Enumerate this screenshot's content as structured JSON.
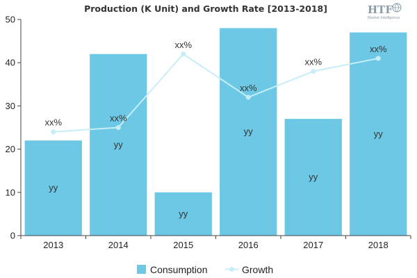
{
  "logo": {
    "text": "HTF",
    "subtitle": "Market Intelligence"
  },
  "chart_data": {
    "type": "bar",
    "title": "Production (K Unit) and Growth Rate [2013-2018]",
    "categories": [
      "2013",
      "2014",
      "2015",
      "2016",
      "2017",
      "2018"
    ],
    "ylim": [
      0,
      50
    ],
    "yticks": [
      0,
      10,
      20,
      30,
      40,
      50
    ],
    "grid": false,
    "legend_position": "bottom",
    "series": [
      {
        "name": "Consumption",
        "type": "bar",
        "color": "#6cc8e4",
        "values": [
          22,
          42,
          10,
          48,
          27,
          47
        ],
        "labels": [
          "yy",
          "yy",
          "yy",
          "yy",
          "yy",
          "yy"
        ]
      },
      {
        "name": "Growth",
        "type": "line",
        "color": "#c7eef8",
        "values": [
          24,
          25,
          42,
          32,
          38,
          41
        ],
        "labels": [
          "xx%",
          "xx%",
          "xx%",
          "xx%",
          "xx%",
          "xx%"
        ]
      }
    ]
  }
}
